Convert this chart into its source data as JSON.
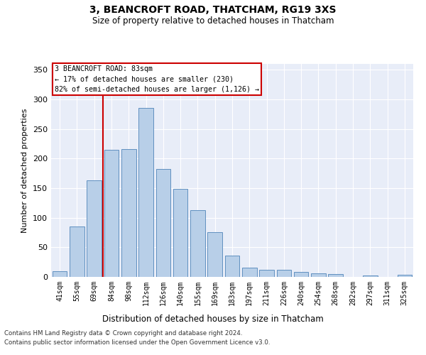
{
  "title1": "3, BEANCROFT ROAD, THATCHAM, RG19 3XS",
  "title2": "Size of property relative to detached houses in Thatcham",
  "xlabel": "Distribution of detached houses by size in Thatcham",
  "ylabel": "Number of detached properties",
  "categories": [
    "41sqm",
    "55sqm",
    "69sqm",
    "84sqm",
    "98sqm",
    "112sqm",
    "126sqm",
    "140sqm",
    "155sqm",
    "169sqm",
    "183sqm",
    "197sqm",
    "211sqm",
    "226sqm",
    "240sqm",
    "254sqm",
    "268sqm",
    "282sqm",
    "297sqm",
    "311sqm",
    "325sqm"
  ],
  "values": [
    10,
    85,
    163,
    215,
    216,
    286,
    182,
    149,
    113,
    76,
    36,
    16,
    12,
    12,
    8,
    6,
    5,
    0,
    2,
    0,
    4
  ],
  "bar_color": "#b8cfe8",
  "bar_edge_color": "#6090c0",
  "vline_color": "#cc0000",
  "vline_index": 3,
  "annotation_lines": [
    "3 BEANCROFT ROAD: 83sqm",
    "← 17% of detached houses are smaller (230)",
    "82% of semi-detached houses are larger (1,126) →"
  ],
  "annotation_box_edgecolor": "#cc0000",
  "ylim": [
    0,
    360
  ],
  "yticks": [
    0,
    50,
    100,
    150,
    200,
    250,
    300,
    350
  ],
  "axes_bg_color": "#e8edf8",
  "grid_color": "#ffffff",
  "footer1": "Contains HM Land Registry data © Crown copyright and database right 2024.",
  "footer2": "Contains public sector information licensed under the Open Government Licence v3.0."
}
